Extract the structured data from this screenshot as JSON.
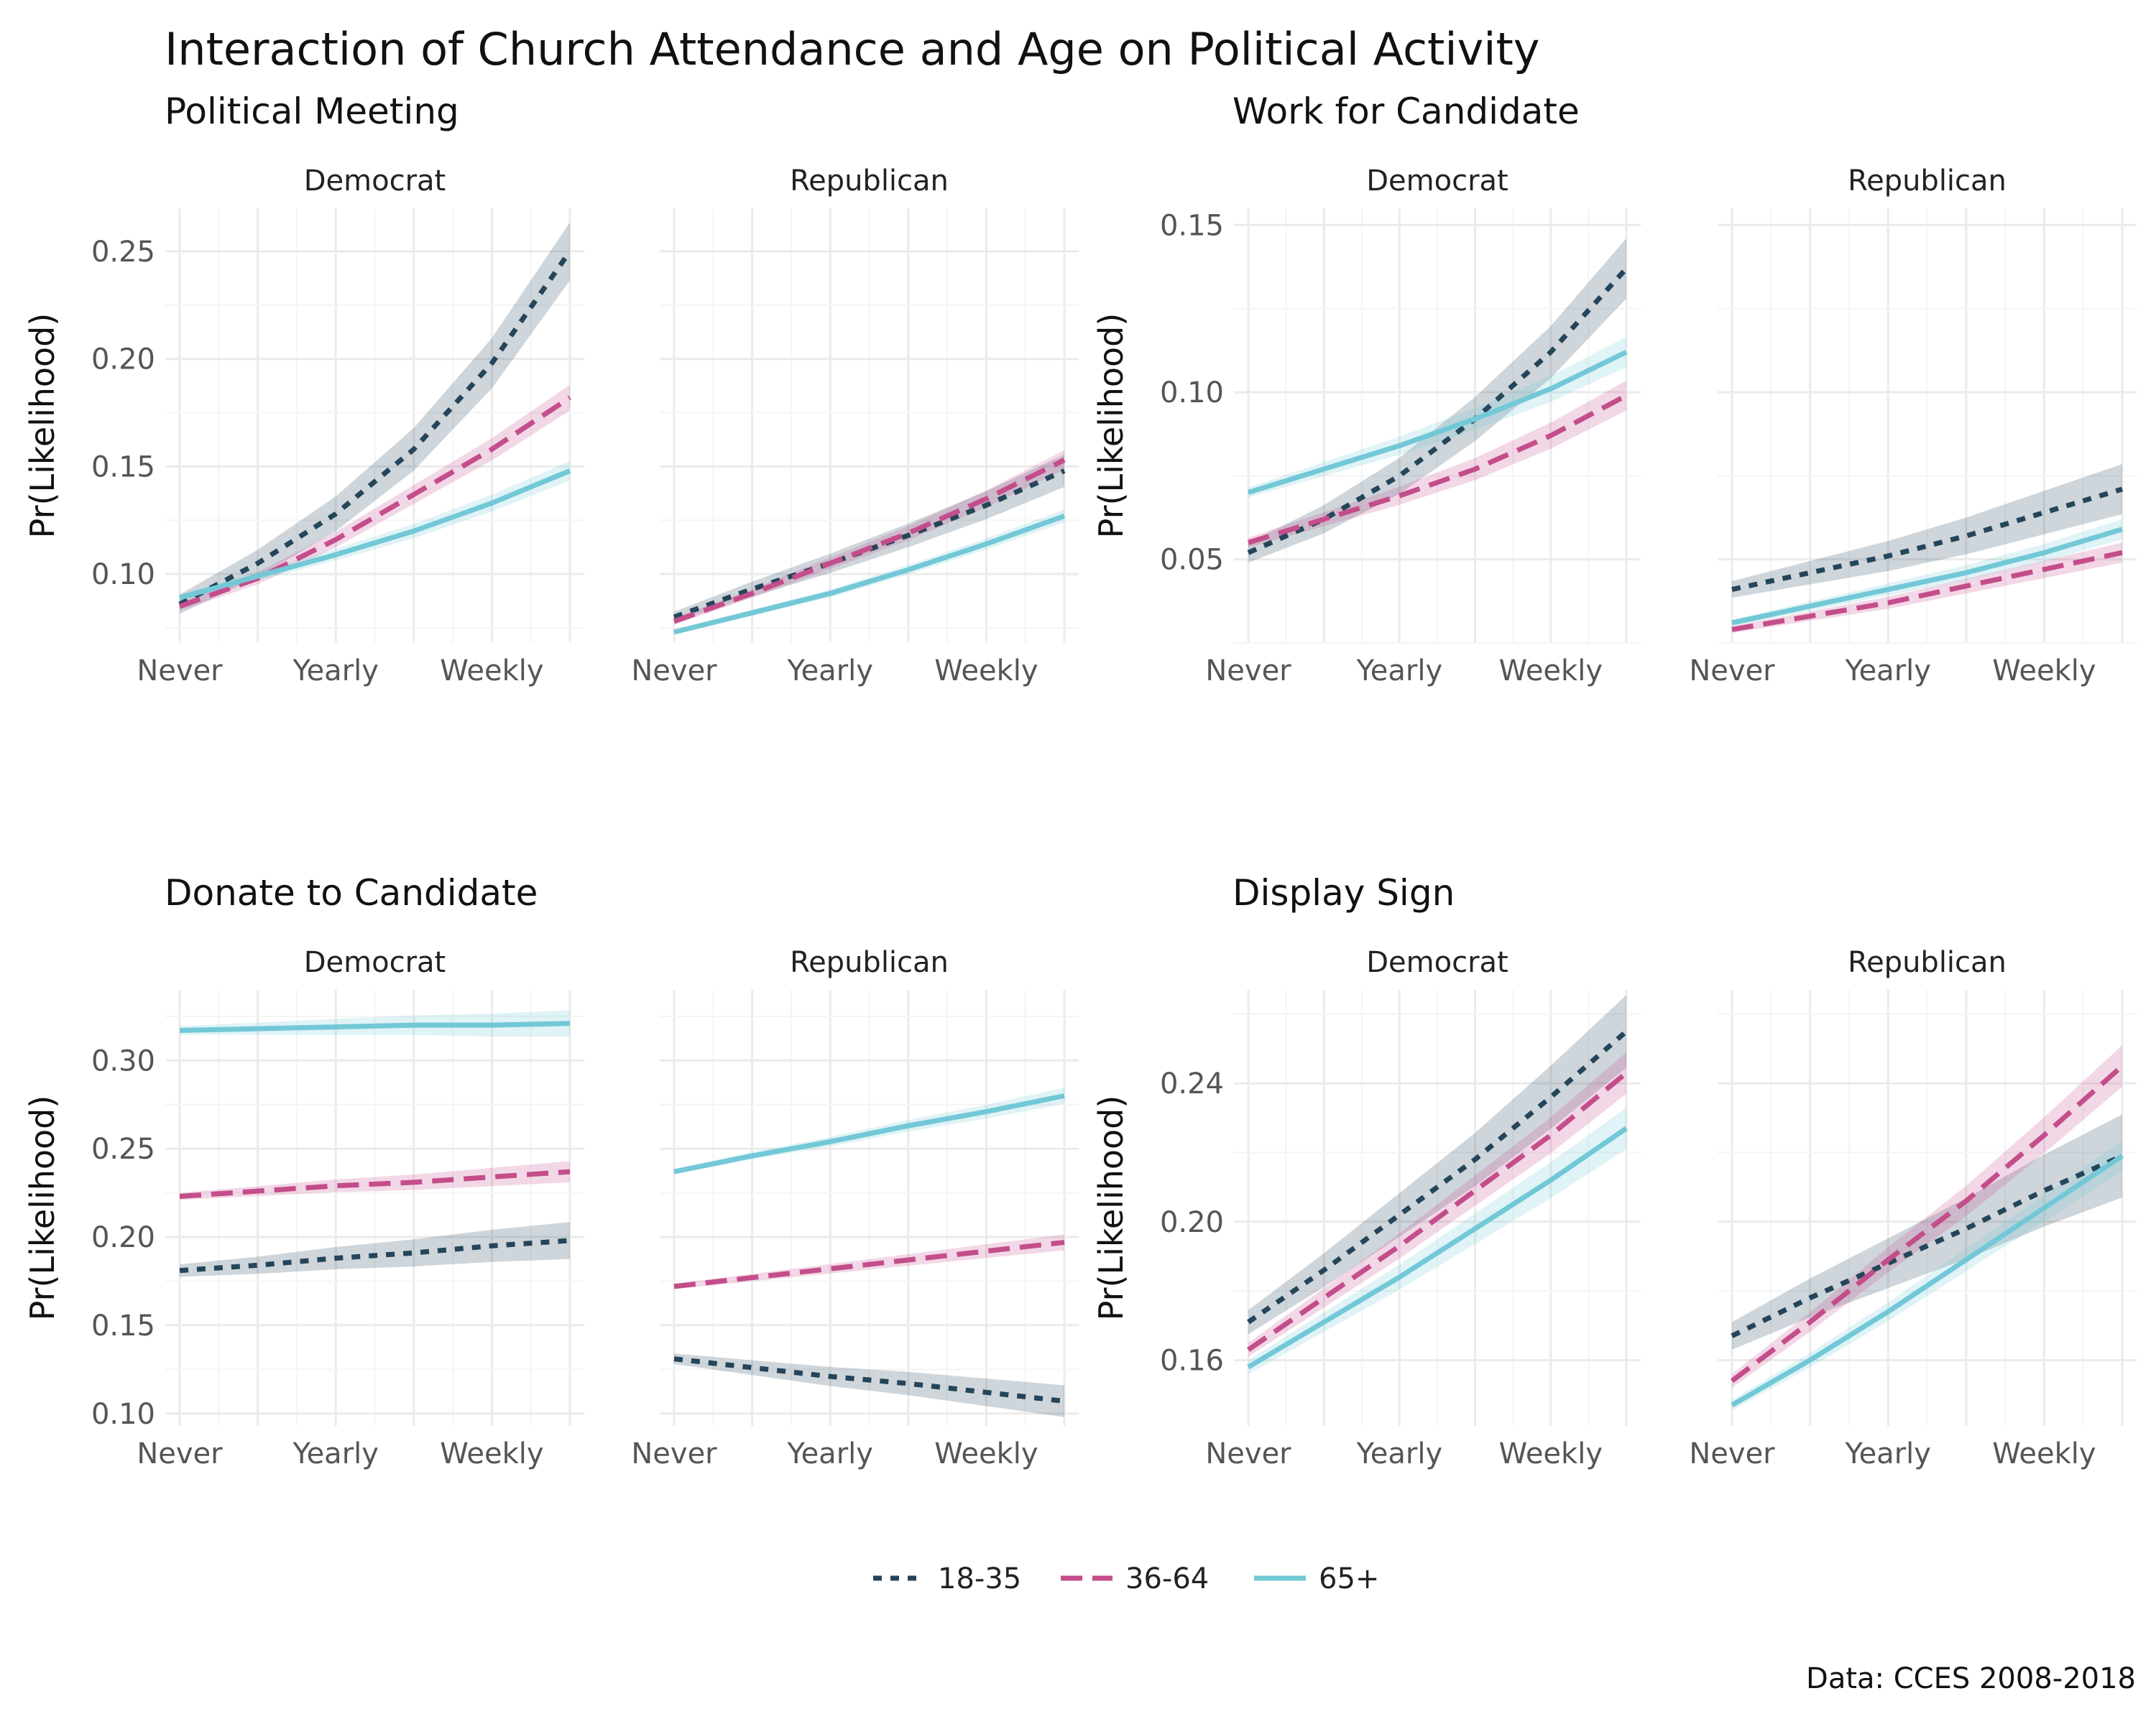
{
  "title": "Interaction of Church Attendance and Age on Political Activity",
  "caption": "Data: CCES 2008-2018",
  "ylabel": "Pr(Likelihood)",
  "x_tick_labels": [
    "Never",
    "Yearly",
    "Weekly"
  ],
  "legend": [
    {
      "label": "18-35",
      "color": "#24455a",
      "dash": "dotted"
    },
    {
      "label": "36-64",
      "color": "#c44d8b",
      "dash": "dashed"
    },
    {
      "label": "65+",
      "color": "#72c8d6",
      "dash": "solid"
    }
  ],
  "chart_data": [
    {
      "type": "line",
      "title": "Political Meeting",
      "x": [
        1,
        2,
        3,
        4,
        5,
        6
      ],
      "ylim": [
        0.068,
        0.27
      ],
      "yticks": [
        0.1,
        0.15,
        0.2,
        0.25
      ],
      "ytick_labels": [
        "0.10",
        "0.15",
        "0.20",
        "0.25"
      ],
      "panels": [
        {
          "name": "Democrat",
          "series": [
            {
              "name": "18-35",
              "values": [
                0.086,
                0.105,
                0.128,
                0.158,
                0.198,
                0.25
              ],
              "band": 0.009
            },
            {
              "name": "36-64",
              "values": [
                0.085,
                0.098,
                0.116,
                0.137,
                0.158,
                0.182
              ],
              "band": 0.004
            },
            {
              "name": "65+",
              "values": [
                0.089,
                0.099,
                0.109,
                0.12,
                0.133,
                0.148
              ],
              "band": 0.003
            }
          ]
        },
        {
          "name": "Republican",
          "series": [
            {
              "name": "18-35",
              "values": [
                0.08,
                0.093,
                0.105,
                0.118,
                0.132,
                0.148
              ],
              "band": 0.005
            },
            {
              "name": "36-64",
              "values": [
                0.078,
                0.091,
                0.105,
                0.119,
                0.135,
                0.153
              ],
              "band": 0.003
            },
            {
              "name": "65+",
              "values": [
                0.073,
                0.082,
                0.091,
                0.102,
                0.114,
                0.127
              ],
              "band": 0.002
            }
          ]
        }
      ]
    },
    {
      "type": "line",
      "title": "Work for Candidate",
      "x": [
        1,
        2,
        3,
        4,
        5,
        6
      ],
      "ylim": [
        0.025,
        0.155
      ],
      "yticks": [
        0.05,
        0.1,
        0.15
      ],
      "ytick_labels": [
        "0.05",
        "0.10",
        "0.15"
      ],
      "panels": [
        {
          "name": "Democrat",
          "series": [
            {
              "name": "18-35",
              "values": [
                0.052,
                0.062,
                0.075,
                0.092,
                0.112,
                0.137
              ],
              "band": 0.006
            },
            {
              "name": "36-64",
              "values": [
                0.055,
                0.062,
                0.069,
                0.077,
                0.087,
                0.099
              ],
              "band": 0.003
            },
            {
              "name": "65+",
              "values": [
                0.07,
                0.077,
                0.084,
                0.092,
                0.101,
                0.112
              ],
              "band": 0.003
            }
          ]
        },
        {
          "name": "Republican",
          "series": [
            {
              "name": "18-35",
              "values": [
                0.041,
                0.046,
                0.051,
                0.057,
                0.064,
                0.071
              ],
              "band": 0.005
            },
            {
              "name": "36-64",
              "values": [
                0.029,
                0.033,
                0.037,
                0.042,
                0.047,
                0.052
              ],
              "band": 0.002
            },
            {
              "name": "65+",
              "values": [
                0.031,
                0.036,
                0.041,
                0.046,
                0.052,
                0.059
              ],
              "band": 0.002
            }
          ]
        }
      ]
    },
    {
      "type": "line",
      "title": "Donate to Candidate",
      "x": [
        1,
        2,
        3,
        4,
        5,
        6
      ],
      "ylim": [
        0.093,
        0.34
      ],
      "yticks": [
        0.1,
        0.15,
        0.2,
        0.25,
        0.3
      ],
      "ytick_labels": [
        "0.10",
        "0.15",
        "0.20",
        "0.25",
        "0.30"
      ],
      "panels": [
        {
          "name": "Democrat",
          "series": [
            {
              "name": "18-35",
              "values": [
                0.181,
                0.184,
                0.188,
                0.191,
                0.195,
                0.198
              ],
              "band": 0.007
            },
            {
              "name": "36-64",
              "values": [
                0.223,
                0.226,
                0.229,
                0.231,
                0.234,
                0.237
              ],
              "band": 0.004
            },
            {
              "name": "65+",
              "values": [
                0.317,
                0.318,
                0.319,
                0.32,
                0.32,
                0.321
              ],
              "band": 0.005
            }
          ]
        },
        {
          "name": "Republican",
          "series": [
            {
              "name": "18-35",
              "values": [
                0.131,
                0.126,
                0.121,
                0.117,
                0.112,
                0.107
              ],
              "band": 0.006
            },
            {
              "name": "36-64",
              "values": [
                0.172,
                0.177,
                0.182,
                0.187,
                0.192,
                0.197
              ],
              "band": 0.003
            },
            {
              "name": "65+",
              "values": [
                0.237,
                0.246,
                0.254,
                0.263,
                0.271,
                0.28
              ],
              "band": 0.003
            }
          ]
        }
      ]
    },
    {
      "type": "line",
      "title": "Display Sign",
      "x": [
        1,
        2,
        3,
        4,
        5,
        6
      ],
      "ylim": [
        0.141,
        0.267
      ],
      "yticks": [
        0.16,
        0.2,
        0.24
      ],
      "ytick_labels": [
        "0.16",
        "0.20",
        "0.24"
      ],
      "panels": [
        {
          "name": "Democrat",
          "series": [
            {
              "name": "18-35",
              "values": [
                0.171,
                0.186,
                0.202,
                0.218,
                0.236,
                0.255
              ],
              "band": 0.007
            },
            {
              "name": "36-64",
              "values": [
                0.163,
                0.178,
                0.193,
                0.209,
                0.225,
                0.243
              ],
              "band": 0.004
            },
            {
              "name": "65+",
              "values": [
                0.158,
                0.171,
                0.184,
                0.198,
                0.212,
                0.227
              ],
              "band": 0.004
            }
          ]
        },
        {
          "name": "Republican",
          "series": [
            {
              "name": "18-35",
              "values": [
                0.167,
                0.178,
                0.188,
                0.198,
                0.209,
                0.219
              ],
              "band": 0.008
            },
            {
              "name": "36-64",
              "values": [
                0.154,
                0.171,
                0.189,
                0.206,
                0.225,
                0.245
              ],
              "band": 0.004
            },
            {
              "name": "65+",
              "values": [
                0.147,
                0.16,
                0.174,
                0.189,
                0.204,
                0.219
              ],
              "band": 0.003
            }
          ]
        }
      ]
    }
  ]
}
